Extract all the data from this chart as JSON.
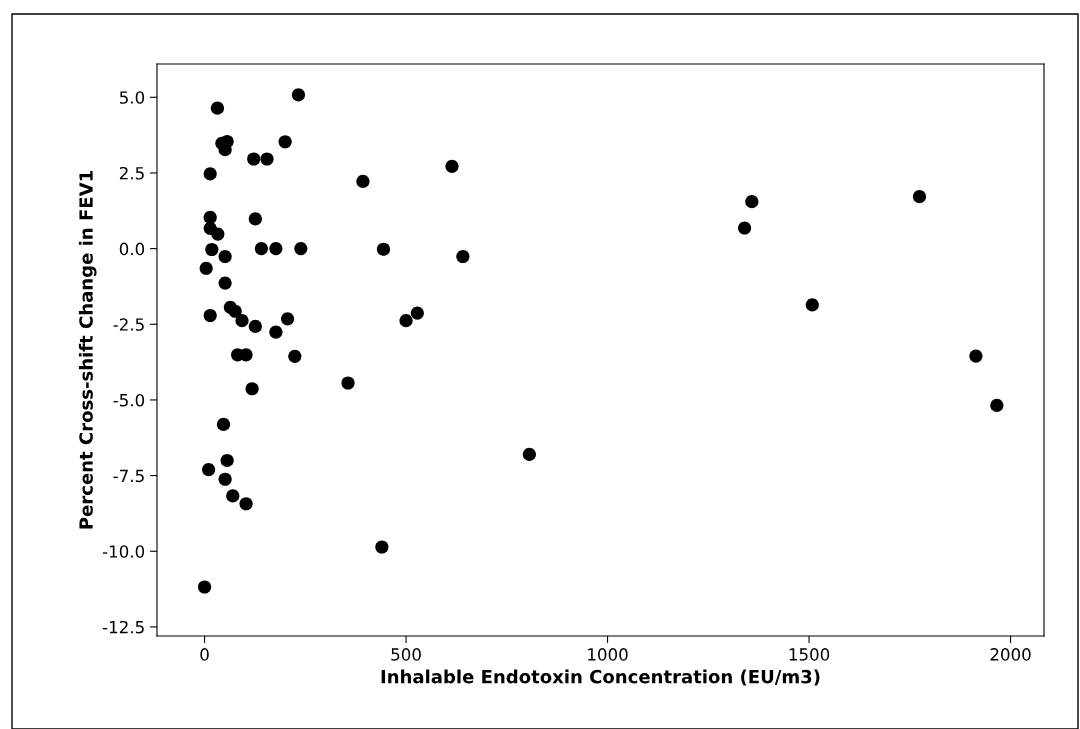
{
  "chart_data": {
    "type": "scatter",
    "xlabel": "Inhalable Endotoxin Concentration (EU/m3)",
    "ylabel": "Percent Cross-shift Change in FEV1",
    "x": [
      233,
      32,
      43,
      56,
      51,
      200,
      122,
      155,
      14,
      393,
      14,
      126,
      14,
      33,
      18,
      141,
      177,
      239,
      51,
      4,
      51,
      64,
      76,
      14,
      93,
      126,
      206,
      177,
      82,
      103,
      224,
      356,
      118,
      47,
      56,
      10,
      51,
      70,
      103,
      0,
      614,
      444,
      641,
      500,
      528,
      806,
      440,
      1358,
      1340,
      1774,
      1508,
      1914,
      1966
    ],
    "values": [
      5.08,
      4.64,
      3.48,
      3.54,
      3.27,
      3.53,
      2.96,
      2.96,
      2.47,
      2.22,
      1.03,
      0.98,
      0.67,
      0.48,
      -0.03,
      0,
      0,
      0,
      -0.26,
      -0.65,
      -1.14,
      -1.94,
      -2.07,
      -2.21,
      -2.38,
      -2.57,
      -2.32,
      -2.76,
      -3.51,
      -3.51,
      -3.56,
      -4.44,
      -4.63,
      -5.81,
      -7.0,
      -7.3,
      -7.62,
      -8.17,
      -8.43,
      -11.18,
      2.72,
      -0.02,
      -0.26,
      -2.38,
      -2.13,
      -6.8,
      -9.86,
      1.55,
      0.68,
      1.72,
      -1.86,
      -3.55,
      -5.18
    ],
    "color": "#000000",
    "marker": "circle",
    "xlim": [
      -118,
      2083
    ],
    "xticks": [
      0,
      500,
      1000,
      1500,
      2000
    ],
    "ylim": [
      -12.8,
      6.1
    ],
    "yticks": [
      {
        "value": 5,
        "label": "5.0"
      },
      {
        "value": 2.5,
        "label": "2.5"
      },
      {
        "value": 0,
        "label": "0.0"
      },
      {
        "value": -2.5,
        "label": "-2.5"
      },
      {
        "value": -5,
        "label": "-5.0"
      },
      {
        "value": -7.5,
        "label": "-7.5"
      },
      {
        "value": -10,
        "label": "-10.0"
      },
      {
        "value": -12.5,
        "label": "-12.5"
      }
    ],
    "grid": false
  }
}
